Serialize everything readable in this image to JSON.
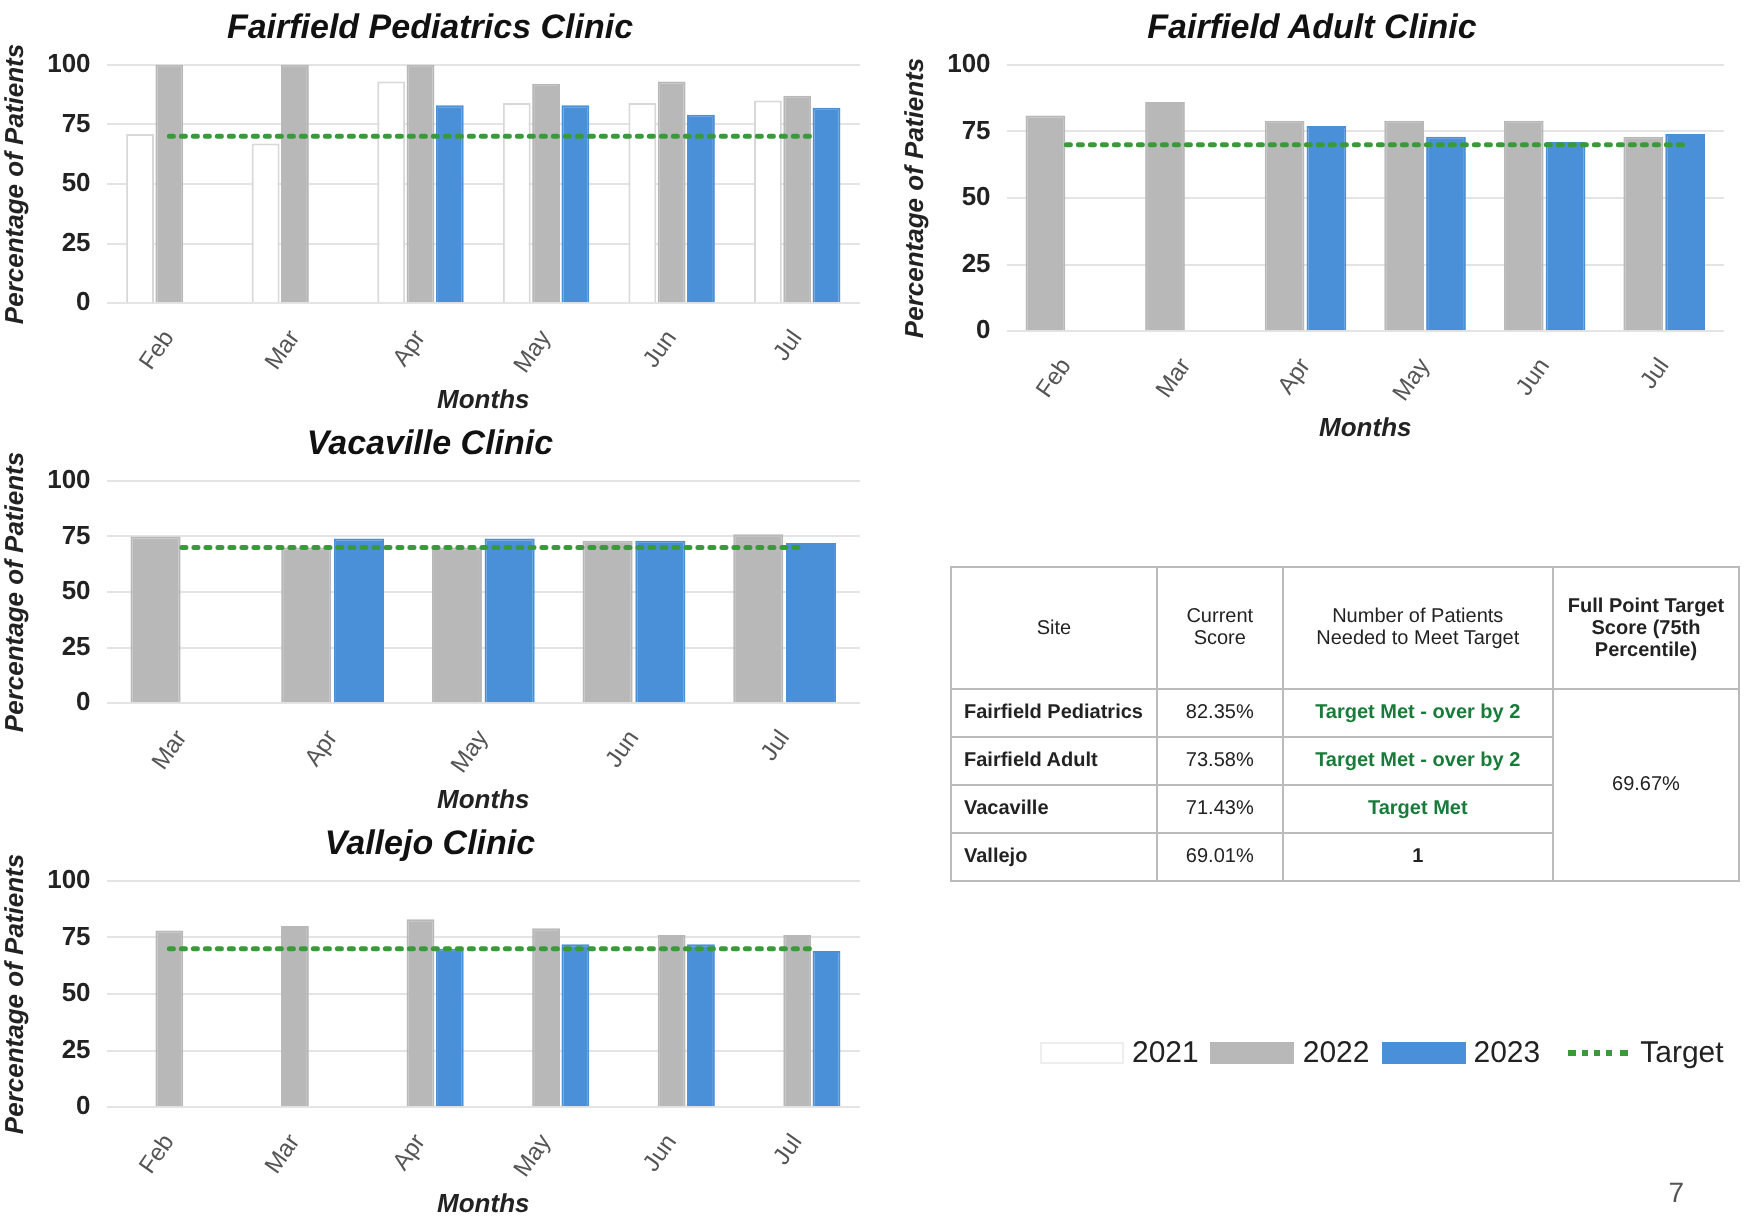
{
  "chart_data": [
    {
      "type": "bar",
      "title": "Fairfield Pediatrics Clinic",
      "xlabel": "Months",
      "ylabel": "Percentage of Patients",
      "categories": [
        "Feb",
        "Mar",
        "Apr",
        "May",
        "Jun",
        "Jul"
      ],
      "series": [
        {
          "color": "#ffffff",
          "values": [
            71,
            67,
            93,
            84,
            84,
            85
          ]
        },
        {
          "color": "#b8b8b8",
          "values": [
            100,
            100,
            100,
            92,
            93,
            87
          ]
        },
        {
          "color": "#4a90d9",
          "values": [
            null,
            null,
            83,
            83,
            79,
            82
          ]
        }
      ],
      "ylim": [
        0,
        100
      ],
      "yticks": [
        0,
        25,
        50,
        75,
        100
      ],
      "grid": "y",
      "ref_lines": [
        {
          "axis": "y",
          "value": 70,
          "color": "#3a9a3a",
          "line_style": "dotted"
        }
      ]
    },
    {
      "type": "bar",
      "title": "Fairfield Adult Clinic",
      "xlabel": "Months",
      "ylabel": "Percentage of Patients",
      "categories": [
        "Feb",
        "Mar",
        "Apr",
        "May",
        "Jun",
        "Jul"
      ],
      "series": [
        {
          "color": "#b8b8b8",
          "values": [
            81,
            86,
            79,
            79,
            79,
            73
          ]
        },
        {
          "color": "#4a90d9",
          "values": [
            null,
            null,
            77,
            73,
            71,
            74
          ]
        }
      ],
      "ylim": [
        0,
        100
      ],
      "yticks": [
        0,
        25,
        50,
        75,
        100
      ],
      "grid": "y",
      "ref_lines": [
        {
          "axis": "y",
          "value": 70,
          "color": "#3a9a3a",
          "line_style": "dotted"
        }
      ]
    },
    {
      "type": "bar",
      "title": "Vacaville Clinic",
      "xlabel": "Months",
      "ylabel": "Percentage of Patients",
      "categories": [
        "Mar",
        "Apr",
        "May",
        "Jun",
        "Jul"
      ],
      "series": [
        {
          "color": "#b8b8b8",
          "values": [
            75,
            70,
            70,
            73,
            76
          ]
        },
        {
          "color": "#4a90d9",
          "values": [
            null,
            74,
            74,
            73,
            72
          ]
        }
      ],
      "ylim": [
        0,
        100
      ],
      "yticks": [
        0,
        25,
        50,
        75,
        100
      ],
      "grid": "y",
      "ref_lines": [
        {
          "axis": "y",
          "value": 70,
          "color": "#3a9a3a",
          "line_style": "dotted"
        }
      ]
    },
    {
      "type": "bar",
      "title": "Vallejo Clinic",
      "xlabel": "Months",
      "ylabel": "Percentage of Patients",
      "categories": [
        "Feb",
        "Mar",
        "Apr",
        "May",
        "Jun",
        "Jul"
      ],
      "series": [
        {
          "name": "2021",
          "color": "#ffffff",
          "values": [
            null,
            null,
            null,
            null,
            null,
            null
          ]
        },
        {
          "name": "2022",
          "color": "#b8b8b8",
          "values": [
            78,
            80,
            83,
            79,
            76,
            76
          ]
        },
        {
          "name": "2023",
          "color": "#4a90d9",
          "values": [
            null,
            null,
            70,
            72,
            72,
            69
          ]
        }
      ],
      "ylim": [
        0,
        100
      ],
      "yticks": [
        0,
        25,
        50,
        75,
        100
      ],
      "grid": "y",
      "legend": "right",
      "ref_lines": [
        {
          "axis": "y",
          "value": 70,
          "label": "Target",
          "color": "#3a9a3a",
          "line_style": "dotted"
        }
      ]
    },
    {
      "type": "other",
      "categories": [
        "Site",
        "Current Score",
        "Number of Patients Needed to Meet Target",
        "Full Point Target Score (75th Percentile)"
      ],
      "y_categories": [
        "Fairfield Pediatrics",
        "Fairfield Adult",
        "Vacaville",
        "Vallejo"
      ],
      "cell_labels": [
        [
          "82.35%",
          "Target Met - over by 2",
          "69.67%"
        ],
        [
          "73.58%",
          "Target Met - over by 2",
          null
        ],
        [
          "71.43%",
          "Target Met",
          null
        ],
        [
          "69.01%",
          "1",
          null
        ]
      ],
      "annotations": [
        "7"
      ]
    }
  ]
}
